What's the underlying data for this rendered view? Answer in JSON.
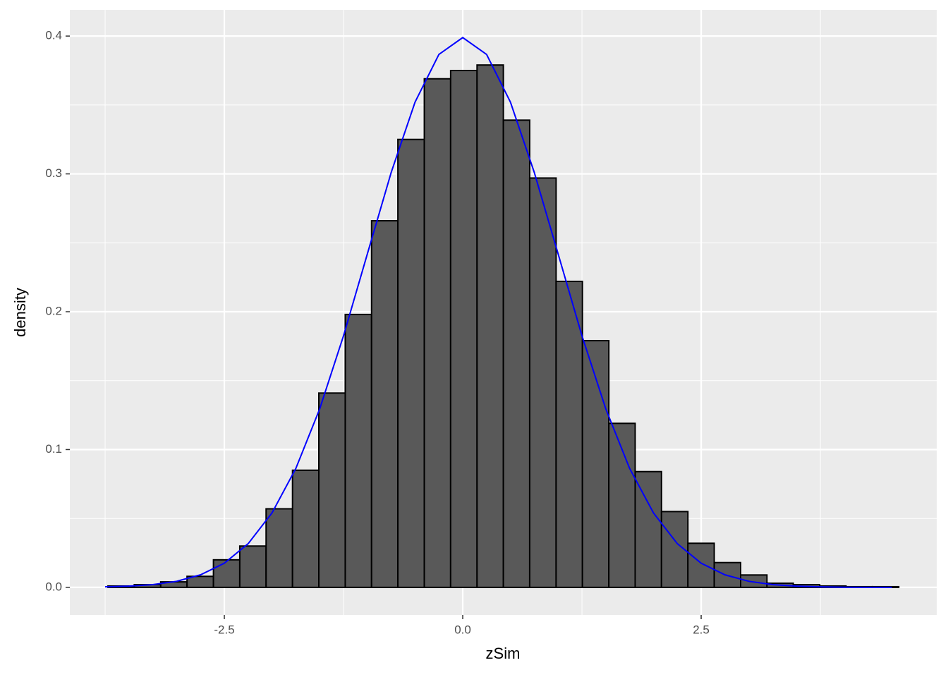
{
  "chart_data": {
    "type": "histogram",
    "x_label": "zSim",
    "y_label": "density",
    "bins": [
      -3.72,
      -3.444,
      -3.167,
      -2.891,
      -2.614,
      -2.338,
      -2.062,
      -1.785,
      -1.509,
      -1.232,
      -0.956,
      -0.68,
      -0.403,
      -0.127,
      0.15,
      0.426,
      0.702,
      0.979,
      1.255,
      1.532,
      1.808,
      2.084,
      2.361,
      2.637,
      2.914,
      3.19,
      3.466,
      3.743,
      4.019,
      4.296,
      4.572
    ],
    "values": [
      0.001,
      0.002,
      0.004,
      0.008,
      0.02,
      0.03,
      0.057,
      0.085,
      0.141,
      0.198,
      0.266,
      0.325,
      0.369,
      0.375,
      0.379,
      0.339,
      0.297,
      0.222,
      0.179,
      0.119,
      0.084,
      0.055,
      0.032,
      0.018,
      0.009,
      0.003,
      0.002,
      0.001,
      0.0005,
      0.0005
    ],
    "color": "#595959",
    "edge_color": "#000000",
    "curve": {
      "color": "#0000ff",
      "x": [
        -3.75,
        -3.5,
        -3.25,
        -3.0,
        -2.75,
        -2.5,
        -2.25,
        -2.0,
        -1.75,
        -1.5,
        -1.25,
        -1.0,
        -0.75,
        -0.5,
        -0.25,
        0,
        0.25,
        0.5,
        0.75,
        1.0,
        1.25,
        1.5,
        1.75,
        2.0,
        2.25,
        2.5,
        2.75,
        3.0,
        3.25,
        3.5,
        3.75,
        4.0,
        4.25,
        4.5
      ],
      "y": [
        0.0004,
        0.0009,
        0.002,
        0.0044,
        0.0091,
        0.0175,
        0.0317,
        0.054,
        0.0863,
        0.1295,
        0.1826,
        0.242,
        0.3011,
        0.3521,
        0.3867,
        0.3989,
        0.3867,
        0.3521,
        0.3011,
        0.242,
        0.1826,
        0.1295,
        0.0863,
        0.054,
        0.0317,
        0.0175,
        0.0091,
        0.0044,
        0.002,
        0.0009,
        0.0004,
        0.0001,
        0,
        0
      ]
    },
    "xlim": [
      -4.12,
      4.97
    ],
    "ylim": [
      -0.02,
      0.419
    ],
    "xticks": [
      -2.5,
      {
        "value": 0,
        "label": "0.0"
      },
      2.5
    ],
    "yticks": [
      {
        "value": 0,
        "label": "0.0"
      },
      0.1,
      0.2,
      0.3,
      0.4
    ],
    "x_minor_breaks": [
      -3.75,
      -1.25,
      1.25,
      3.75
    ],
    "y_minor_breaks": [
      0.05,
      0.15,
      0.25,
      0.35
    ],
    "grid": true
  }
}
